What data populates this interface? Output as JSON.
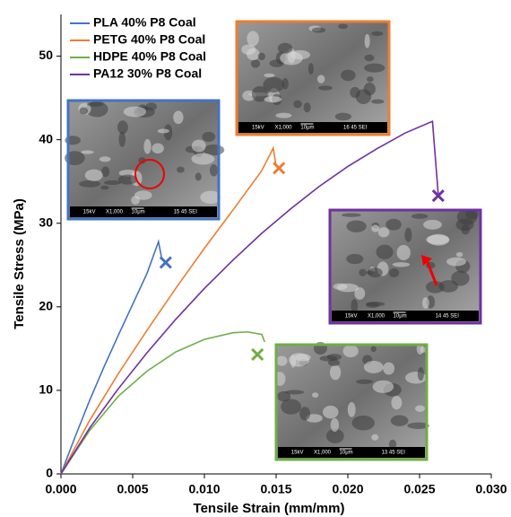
{
  "chart_data": {
    "type": "line",
    "xlabel": "Tensile Strain (mm/mm)",
    "ylabel": "Tensile Stress (MPa)",
    "xlim": [
      0,
      0.03
    ],
    "ylim": [
      0,
      55
    ],
    "xticks": [
      {
        "value": 0,
        "label": "0.000"
      },
      {
        "value": 0.005,
        "label": "0.005"
      },
      {
        "value": 0.01,
        "label": "0.010"
      },
      {
        "value": 0.015,
        "label": "0.015"
      },
      {
        "value": 0.02,
        "label": "0.020"
      },
      {
        "value": 0.025,
        "label": "0.025"
      },
      {
        "value": 0.03,
        "label": "0.030"
      }
    ],
    "yticks": [
      0,
      10,
      20,
      30,
      40,
      50
    ],
    "grid": false,
    "legend": "top-left",
    "series": [
      {
        "name": "PLA 40% P8 Coal",
        "color": "#4472c4",
        "x": [
          0,
          0.001,
          0.002,
          0.003,
          0.004,
          0.005,
          0.006,
          0.0068,
          0.007
        ],
        "values": [
          0,
          4.5,
          8.8,
          12.8,
          16.6,
          20.3,
          24,
          27.8,
          26
        ],
        "break": {
          "x": 0.0073,
          "y": 25.3
        }
      },
      {
        "name": "PETG 40% P8 Coal",
        "color": "#ed7d31",
        "x": [
          0,
          0.002,
          0.004,
          0.006,
          0.008,
          0.01,
          0.012,
          0.014,
          0.0148,
          0.015
        ],
        "values": [
          0,
          6.4,
          12,
          17.2,
          22.2,
          27,
          31.6,
          36.3,
          39,
          36.8
        ],
        "break": {
          "x": 0.0152,
          "y": 36.6
        }
      },
      {
        "name": "HDPE 40% P8 Coal",
        "color": "#70ad47",
        "x": [
          0,
          0.002,
          0.004,
          0.006,
          0.008,
          0.01,
          0.012,
          0.013,
          0.014,
          0.0142
        ],
        "values": [
          0,
          5.2,
          9.3,
          12.3,
          14.6,
          16.1,
          16.9,
          17,
          16.7,
          15.8
        ],
        "break": {
          "x": 0.0137,
          "y": 14.3
        }
      },
      {
        "name": "PA12 30% P8 Coal",
        "color": "#7030a0",
        "x": [
          0,
          0.002,
          0.004,
          0.006,
          0.008,
          0.01,
          0.012,
          0.014,
          0.016,
          0.018,
          0.02,
          0.022,
          0.024,
          0.0259,
          0.0263
        ],
        "values": [
          0,
          5.5,
          10.2,
          14.5,
          18.5,
          22.2,
          25.6,
          28.8,
          31.7,
          34.4,
          36.8,
          38.9,
          40.8,
          42.2,
          33.5
        ],
        "break": {
          "x": 0.0263,
          "y": 33.3
        }
      }
    ],
    "insets": [
      {
        "labels": [
          "15kV",
          "X1,000",
          "10μm",
          "15 45 SEI"
        ]
      },
      {
        "labels": [
          "15kV",
          "X1,000",
          "10μm",
          "16 45 SEI"
        ]
      },
      {
        "labels": [
          "15kV",
          "X1,000",
          "10μm",
          "13 45 SEI"
        ]
      },
      {
        "labels": [
          "15kV",
          "X1,000",
          "10μm",
          "14 45 SEI"
        ]
      }
    ]
  }
}
